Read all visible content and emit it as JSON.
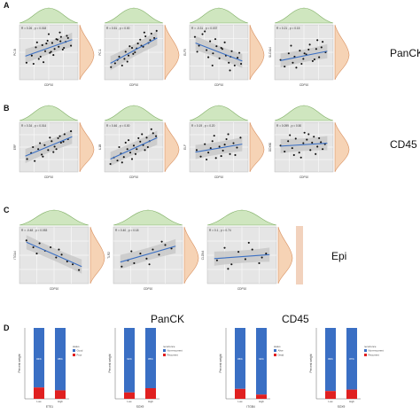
{
  "figure": {
    "row_letters": [
      "A",
      "B",
      "C",
      "D"
    ],
    "row_labels": [
      "PanCK",
      "CD45",
      "Epi"
    ],
    "bar_group_labels": [
      "PanCK",
      "CD45"
    ]
  },
  "colors": {
    "scatter_fill": "#e5e5e5",
    "regression_line": "#3a6fc4",
    "band": "#c9c9c9",
    "top_density": "#cfe6bf",
    "top_density_edge": "#7fae64",
    "right_density": "#f6d3b5",
    "right_density_edge": "#d99262",
    "bar_blue": "#3a6fc4",
    "bar_red": "#e02020",
    "label_box": "#f2d2bd"
  },
  "chart_data": [
    {
      "type": "scatter",
      "id": "A1",
      "annotation": "R = 0.26 , p = 0.018",
      "xlabel": "CDP10",
      "ylabel": "PC-B",
      "xlim": [
        0,
        10
      ],
      "ylim": [
        0,
        10
      ],
      "x": [
        1.2,
        2.1,
        2.8,
        3.3,
        3.9,
        4.4,
        4.8,
        5.2,
        5.6,
        6.0,
        6.3,
        6.7,
        7.1,
        7.4,
        7.9,
        8.3,
        8.8,
        5.0,
        4.1,
        6.9,
        3.0,
        5.8,
        7.6,
        2.4,
        6.5,
        4.6,
        5.4,
        7.0,
        3.6,
        8.1
      ],
      "y": [
        3.1,
        4.4,
        5.9,
        3.8,
        6.3,
        5.2,
        7.1,
        4.9,
        6.7,
        5.6,
        7.4,
        6.0,
        7.8,
        5.5,
        6.9,
        7.6,
        6.2,
        8.3,
        3.2,
        8.6,
        6.8,
        4.5,
        5.8,
        2.9,
        7.3,
        6.6,
        5.1,
        7.0,
        4.2,
        8.0
      ],
      "fit": {
        "x": [
          1,
          9
        ],
        "y": [
          4.3,
          7.3
        ]
      }
    },
    {
      "type": "scatter",
      "id": "A2",
      "annotation": "R = 0.51 , p = 0.00",
      "xlabel": "CDP10",
      "ylabel": "PC-1",
      "xlim": [
        0,
        10
      ],
      "ylim": [
        0,
        10
      ],
      "x": [
        1.1,
        1.8,
        2.5,
        3.0,
        3.6,
        4.1,
        4.7,
        5.2,
        5.7,
        6.1,
        6.6,
        7.0,
        7.5,
        8.0,
        8.5,
        8.9,
        2.2,
        3.4,
        4.9,
        6.3,
        7.8,
        5.5,
        4.3,
        6.8,
        3.9
      ],
      "y": [
        2.3,
        3.0,
        4.2,
        2.6,
        5.1,
        4.4,
        5.8,
        5.0,
        6.6,
        7.3,
        6.0,
        7.9,
        6.7,
        8.4,
        7.6,
        8.9,
        3.6,
        3.8,
        4.7,
        6.2,
        7.2,
        5.7,
        6.1,
        8.6,
        3.3
      ],
      "fit": {
        "x": [
          1,
          9
        ],
        "y": [
          3.0,
          7.6
        ]
      }
    },
    {
      "type": "scatter",
      "id": "A3",
      "annotation": "R = -0.31 , p = 0.037",
      "xlabel": "CDP10",
      "ylabel": "ELF5",
      "xlim": [
        0,
        10
      ],
      "ylim": [
        0,
        10
      ],
      "x": [
        0.9,
        1.6,
        2.2,
        2.9,
        3.5,
        4.0,
        4.6,
        5.1,
        5.6,
        6.2,
        6.7,
        7.2,
        7.7,
        8.2,
        8.8,
        2.6,
        3.9,
        5.4,
        6.9,
        8.5,
        1.3,
        4.4,
        7.0,
        6.0,
        3.2
      ],
      "y": [
        7.8,
        6.2,
        8.3,
        5.4,
        7.0,
        4.8,
        6.1,
        3.9,
        5.6,
        4.4,
        3.1,
        5.2,
        2.6,
        4.0,
        2.9,
        8.8,
        2.6,
        5.8,
        1.7,
        4.9,
        5.1,
        7.4,
        4.2,
        6.8,
        4.1
      ],
      "fit": {
        "x": [
          1,
          9
        ],
        "y": [
          6.7,
          3.4
        ]
      }
    },
    {
      "type": "scatter",
      "id": "A4",
      "annotation": "R = 0.21 , p = 0.15",
      "xlabel": "CDP10",
      "ylabel": "SLC4A4",
      "xlim": [
        0,
        10
      ],
      "ylim": [
        0,
        10
      ],
      "x": [
        1.0,
        1.7,
        2.4,
        3.1,
        3.7,
        4.3,
        4.9,
        5.4,
        6.0,
        6.5,
        7.1,
        7.6,
        8.2,
        8.7,
        2.8,
        4.6,
        5.8,
        7.3,
        3.4,
        6.8,
        8.0,
        5.1
      ],
      "y": [
        3.6,
        2.4,
        4.8,
        3.1,
        2.2,
        5.3,
        3.8,
        4.6,
        6.4,
        3.4,
        5.6,
        4.1,
        6.9,
        5.0,
        6.2,
        2.9,
        5.5,
        7.2,
        4.2,
        3.7,
        5.9,
        4.8
      ],
      "fit": {
        "x": [
          1,
          9
        ],
        "y": [
          3.5,
          5.2
        ]
      }
    },
    {
      "type": "scatter",
      "id": "B1",
      "annotation": "R = 0.34 , p = 0.014",
      "xlabel": "CDP10",
      "ylabel": "ERF",
      "xlim": [
        0,
        10
      ],
      "ylim": [
        0,
        10
      ],
      "x": [
        1.3,
        2.0,
        2.6,
        3.2,
        3.8,
        4.3,
        4.9,
        5.5,
        6.0,
        6.6,
        7.1,
        7.7,
        8.3,
        8.8,
        2.3,
        4.0,
        5.2,
        6.3,
        7.5,
        3.5,
        5.8,
        6.9
      ],
      "y": [
        2.6,
        3.8,
        2.2,
        4.6,
        3.5,
        5.4,
        4.4,
        6.2,
        5.1,
        6.8,
        5.9,
        7.6,
        6.6,
        8.2,
        5.0,
        3.1,
        6.9,
        4.6,
        6.1,
        5.8,
        4.0,
        7.2
      ],
      "fit": {
        "x": [
          1,
          9
        ],
        "y": [
          3.2,
          7.1
        ]
      }
    },
    {
      "type": "scatter",
      "id": "B2",
      "annotation": "R = 0.46 , p = 0.00",
      "xlabel": "CDP10",
      "ylabel": "IL1B",
      "xlim": [
        0,
        10
      ],
      "ylim": [
        0,
        10
      ],
      "x": [
        1.0,
        1.6,
        2.2,
        2.8,
        3.3,
        3.9,
        4.4,
        5.0,
        5.5,
        6.1,
        6.6,
        7.2,
        7.7,
        8.3,
        8.8,
        2.5,
        3.6,
        4.7,
        5.8,
        6.9,
        8.0,
        4.1,
        6.4,
        7.4,
        3.0,
        5.3
      ],
      "y": [
        1.6,
        2.9,
        2.3,
        3.7,
        3.0,
        4.6,
        3.9,
        5.3,
        4.6,
        6.1,
        5.4,
        6.9,
        6.2,
        7.8,
        7.2,
        5.0,
        5.9,
        2.6,
        6.8,
        4.4,
        8.6,
        6.4,
        7.6,
        5.0,
        1.9,
        3.6
      ],
      "fit": {
        "x": [
          1,
          9
        ],
        "y": [
          2.6,
          6.9
        ]
      }
    },
    {
      "type": "scatter",
      "id": "B3",
      "annotation": "R = 0.19 , p = 0.20",
      "xlabel": "CDP10",
      "ylabel": "ELF",
      "xlim": [
        0,
        10
      ],
      "ylim": [
        0,
        10
      ],
      "x": [
        1.2,
        1.9,
        2.6,
        3.2,
        3.9,
        4.5,
        5.1,
        5.7,
        6.3,
        6.9,
        7.5,
        8.1,
        8.7,
        2.9,
        4.2,
        5.4,
        6.6,
        7.8,
        3.6,
        6.0
      ],
      "y": [
        4.4,
        3.1,
        5.6,
        3.9,
        6.2,
        2.8,
        5.1,
        4.3,
        6.6,
        3.6,
        5.8,
        4.9,
        6.9,
        2.5,
        7.3,
        3.2,
        7.6,
        3.4,
        4.8,
        5.5
      ],
      "fit": {
        "x": [
          1,
          9
        ],
        "y": [
          4.0,
          5.6
        ]
      }
    },
    {
      "type": "scatter",
      "id": "B4",
      "annotation": "R = 0.099 , p = 0.50",
      "xlabel": "CDP10",
      "ylabel": "DDX60",
      "xlim": [
        0,
        10
      ],
      "ylim": [
        0,
        10
      ],
      "x": [
        1.0,
        1.7,
        2.3,
        3.0,
        3.6,
        4.2,
        4.9,
        5.5,
        6.1,
        6.7,
        7.3,
        7.9,
        8.6,
        2.6,
        4.5,
        5.8,
        7.0,
        8.2,
        3.3,
        6.4,
        5.1,
        7.6
      ],
      "y": [
        5.3,
        4.1,
        6.2,
        4.8,
        6.7,
        3.9,
        5.8,
        6.5,
        4.4,
        7.1,
        5.1,
        6.0,
        5.6,
        7.4,
        2.9,
        7.6,
        3.6,
        4.6,
        3.4,
        5.9,
        7.9,
        6.8
      ],
      "fit": {
        "x": [
          1,
          9
        ],
        "y": [
          5.2,
          5.8
        ]
      }
    },
    {
      "type": "scatter",
      "id": "C1",
      "annotation": "R = -0.48 , p = 0.053",
      "xlabel": "CDP10",
      "ylabel": "ITGA4",
      "xlim": [
        0,
        10
      ],
      "ylim": [
        0,
        10
      ],
      "x": [
        1.0,
        2.0,
        2.9,
        3.7,
        4.5,
        5.3,
        6.1,
        6.9,
        7.7,
        8.6,
        2.5,
        5.7
      ],
      "y": [
        7.6,
        6.4,
        7.1,
        5.8,
        6.4,
        4.6,
        5.1,
        3.9,
        3.4,
        2.4,
        5.3,
        6.0
      ],
      "fit": {
        "x": [
          1,
          9
        ],
        "y": [
          7.3,
          3.0
        ]
      }
    },
    {
      "type": "scatter",
      "id": "C2",
      "annotation": "R = 0.40 , p = 0.18",
      "xlabel": "CDP10",
      "ylabel": "TLR2",
      "xlim": [
        0,
        10
      ],
      "ylim": [
        0,
        10
      ],
      "x": [
        1.2,
        2.1,
        3.0,
        3.9,
        4.8,
        5.7,
        6.6,
        7.5,
        8.4,
        2.6,
        5.2,
        7.0
      ],
      "y": [
        3.0,
        4.1,
        3.6,
        5.3,
        4.4,
        6.0,
        5.1,
        6.8,
        6.2,
        5.7,
        3.4,
        7.4
      ],
      "fit": {
        "x": [
          1,
          9
        ],
        "y": [
          3.8,
          6.6
        ]
      }
    },
    {
      "type": "scatter",
      "id": "C3",
      "annotation": "R = 0.1 , p = 0.74",
      "xlabel": "CDP10",
      "ylabel": "CLDN4",
      "xlim": [
        0,
        10
      ],
      "ylim": [
        0,
        10
      ],
      "x": [
        1.4,
        2.5,
        3.5,
        4.5,
        5.5,
        6.5,
        7.5,
        8.5,
        3.0,
        6.0,
        7.9
      ],
      "y": [
        4.1,
        6.3,
        3.4,
        5.6,
        4.3,
        6.0,
        3.6,
        5.3,
        2.6,
        7.2,
        4.6
      ],
      "fit": {
        "x": [
          1,
          9
        ],
        "y": [
          4.4,
          5.1
        ]
      }
    },
    {
      "type": "bar",
      "id": "D1",
      "group": "PanCK",
      "categories": [
        "Low",
        "High"
      ],
      "xlabel": "ETS1",
      "ylabel": "Percent weight",
      "series": [
        {
          "name": "Good",
          "values": [
            0.84,
            0.88
          ]
        },
        {
          "name": "Poor",
          "values": [
            0.16,
            0.12
          ]
        }
      ],
      "percent_labels": [
        "84%",
        "88%"
      ],
      "legend_title": "status"
    },
    {
      "type": "bar",
      "id": "D2",
      "group": "PanCK",
      "categories": [
        "Low",
        "High"
      ],
      "xlabel": "SOX9",
      "ylabel": "Percent weight",
      "series": [
        {
          "name": "Non-recurrent",
          "values": [
            0.91,
            0.85
          ]
        },
        {
          "name": "Recurrent",
          "values": [
            0.09,
            0.15
          ]
        }
      ],
      "percent_labels": [
        "91%",
        "85%"
      ],
      "legend_title": "recurrence"
    },
    {
      "type": "bar",
      "id": "D3",
      "group": "CD45",
      "categories": [
        "Low",
        "High"
      ],
      "xlabel": "ITGB4",
      "ylabel": "Percent weight",
      "series": [
        {
          "name": "Alive",
          "values": [
            0.86,
            0.94
          ]
        },
        {
          "name": "Dead",
          "values": [
            0.14,
            0.06
          ]
        }
      ],
      "percent_labels": [
        "86%",
        "94%"
      ],
      "legend_title": "status"
    },
    {
      "type": "bar",
      "id": "D4",
      "group": "CD45",
      "categories": [
        "Low",
        "High"
      ],
      "xlabel": "SOX9",
      "ylabel": "Percent weight",
      "series": [
        {
          "name": "Non-recurrent",
          "values": [
            0.89,
            0.87
          ]
        },
        {
          "name": "Recurrent",
          "values": [
            0.11,
            0.13
          ]
        }
      ],
      "percent_labels": [
        "89%",
        "87%"
      ],
      "legend_title": "recurrence"
    }
  ]
}
